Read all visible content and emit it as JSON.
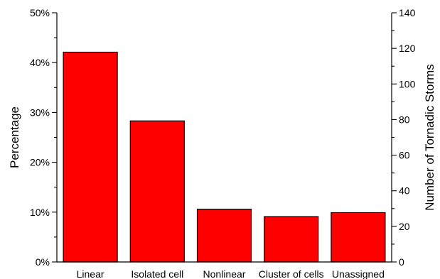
{
  "chart_data": {
    "type": "bar",
    "categories": [
      "Linear",
      "Isolated cell",
      "Nonlinear",
      "Cluster of cells",
      "Unassigned"
    ],
    "values": [
      42.1,
      28.3,
      10.6,
      9.1,
      9.9
    ],
    "ylabel": "Percentage",
    "ylabel_right": "Number of Tornadic Storms",
    "ylim": [
      0,
      50
    ],
    "ylim_right": [
      0,
      140
    ],
    "yticks": [
      0,
      10,
      20,
      30,
      40,
      50
    ],
    "ytick_labels": [
      "0%",
      "10%",
      "20%",
      "30%",
      "40%",
      "50%"
    ],
    "yticks_right": [
      0,
      20,
      40,
      60,
      80,
      100,
      120,
      140
    ],
    "ytick_labels_right": [
      "0",
      "20",
      "40",
      "60",
      "80",
      "100",
      "120",
      "140"
    ],
    "bar_color": "#ff0000",
    "grid": false,
    "legend": "none"
  }
}
